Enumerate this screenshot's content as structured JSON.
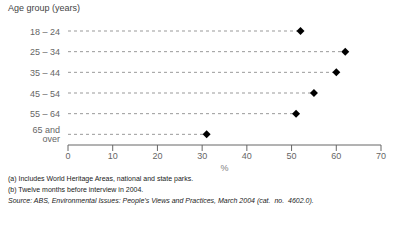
{
  "chart_data": {
    "type": "dot",
    "orientation": "horizontal",
    "categories": [
      "18 – 24",
      "25 – 34",
      "35 – 44",
      "45 – 54",
      "55 – 64",
      "65 and over"
    ],
    "values": [
      52,
      62,
      60,
      55,
      51,
      31
    ],
    "xlabel": "%",
    "ylabel": "Age group (years)",
    "xlim": [
      0,
      70
    ],
    "xticks": [
      0,
      10,
      20,
      30,
      40,
      50,
      60,
      70
    ],
    "color": "#000000",
    "marker": "diamond",
    "line_style": "dashed",
    "grid": false,
    "annotations": [
      "(a) Includes World Heritage Areas, national and state parks.",
      "(b) Twelve months before interview in 2004.",
      "Source: ABS, Environmental Issues: People’s Views and Practices, March 2004 (cat.  no.  4602.0)."
    ]
  }
}
